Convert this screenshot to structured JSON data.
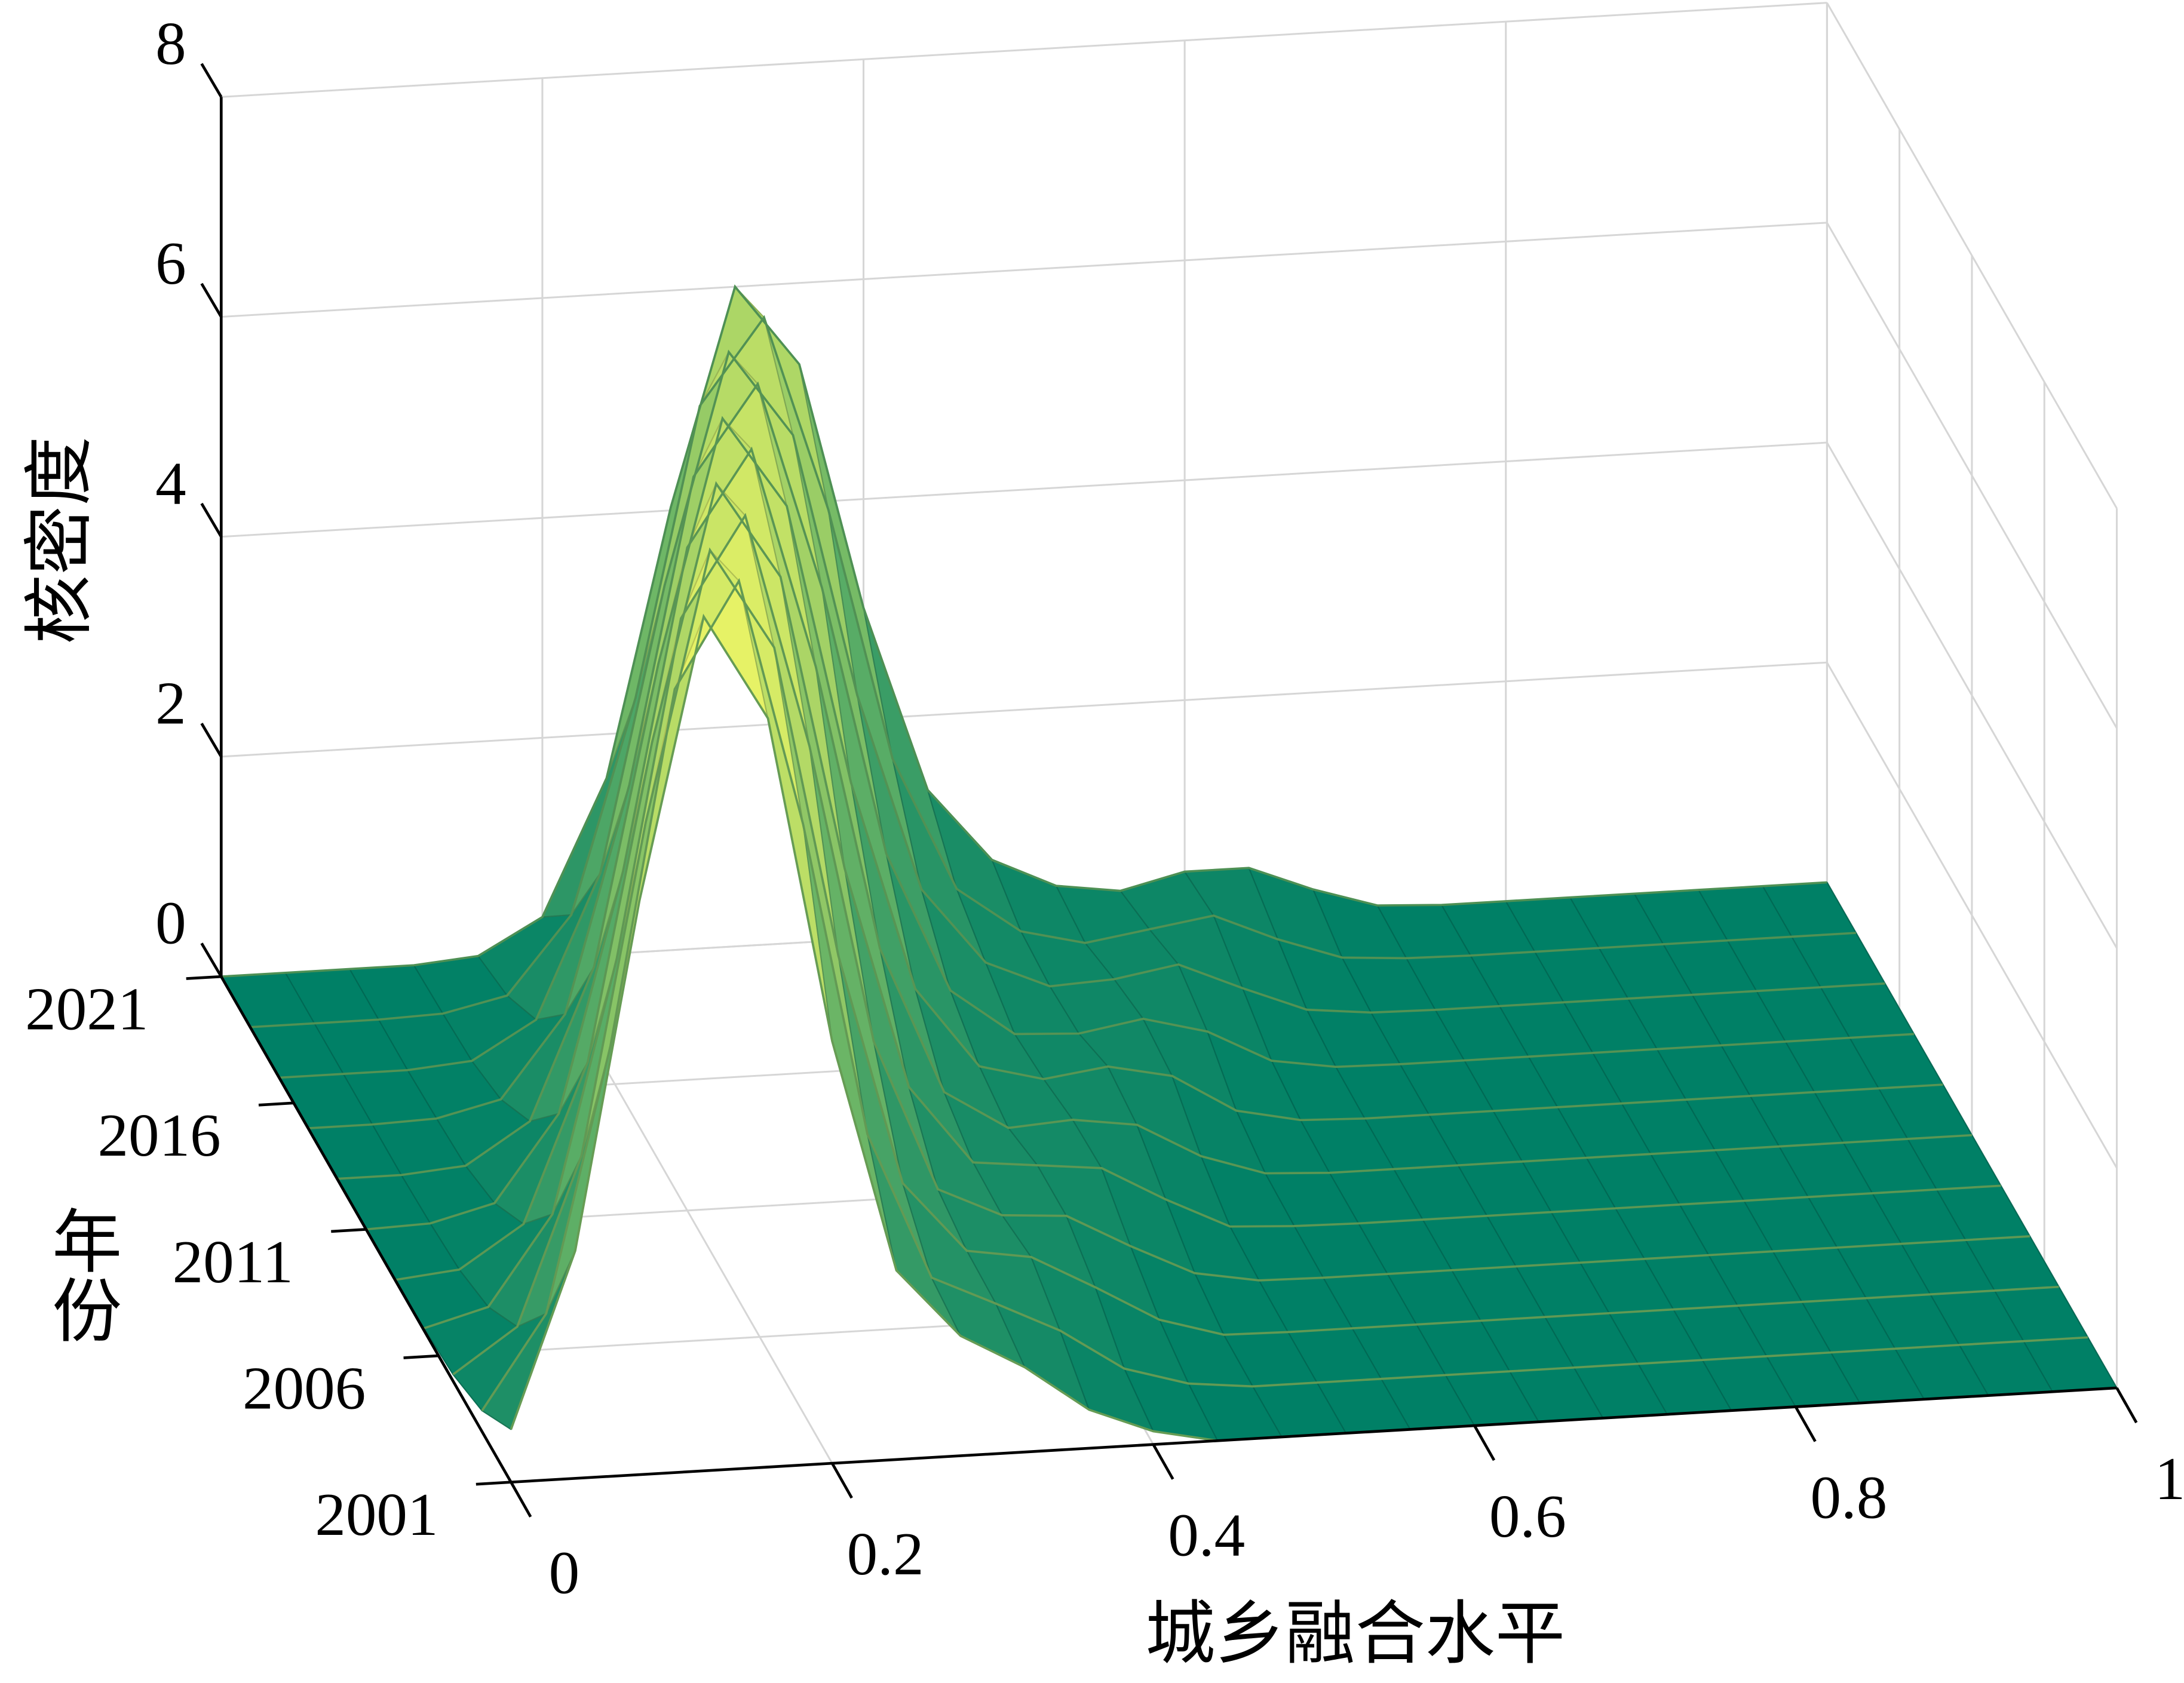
{
  "chart_data": {
    "type": "surface",
    "xlabel": "城乡融合水平",
    "ylabel": "年份",
    "zlabel": "核密度",
    "x": [
      0,
      0.04,
      0.08,
      0.12,
      0.16,
      0.2,
      0.24,
      0.28,
      0.32,
      0.36,
      0.4,
      0.44,
      0.48,
      0.52,
      0.56,
      0.6,
      0.64,
      0.68,
      0.72,
      0.76,
      0.8,
      0.84,
      0.88,
      0.92,
      0.96,
      1
    ],
    "years": [
      2001,
      2003,
      2005,
      2007,
      2009,
      2011,
      2013,
      2015,
      2017,
      2019,
      2021
    ],
    "z": [
      [
        0.48,
        2.07,
        5.22,
        7.77,
        6.81,
        3.84,
        1.72,
        1.09,
        0.77,
        0.35,
        0.12,
        0,
        0,
        0,
        0,
        0,
        0,
        0,
        0,
        0,
        0,
        0,
        0,
        0,
        0,
        0
      ],
      [
        0.19,
        1.04,
        3.44,
        6.65,
        7.6,
        5.35,
        2.5,
        1.16,
        0.89,
        0.61,
        0.23,
        0.06,
        0,
        0,
        0,
        0,
        0,
        0,
        0,
        0,
        0,
        0,
        0,
        0,
        0,
        0
      ],
      [
        0.06,
        0.46,
        1.98,
        4.98,
        7.42,
        6.5,
        3.66,
        1.56,
        0.91,
        0.82,
        0.51,
        0.18,
        0.01,
        0,
        0,
        0,
        0,
        0,
        0,
        0,
        0,
        0,
        0,
        0,
        0,
        0
      ],
      [
        0.02,
        0.18,
        0.99,
        3.28,
        6.34,
        7.24,
        5.11,
        2.39,
        1.01,
        0.74,
        0.7,
        0.39,
        0.11,
        0.01,
        0,
        0,
        0,
        0,
        0,
        0,
        0,
        0,
        0,
        0,
        0,
        0
      ],
      [
        0,
        0.06,
        0.44,
        1.88,
        4.75,
        7.07,
        6.19,
        3.5,
        1.48,
        0.76,
        0.7,
        0.64,
        0.32,
        0.04,
        0.01,
        0,
        0,
        0,
        0,
        0,
        0,
        0,
        0,
        0,
        0,
        0
      ],
      [
        0,
        0.02,
        0.17,
        0.95,
        3.12,
        6.03,
        6.89,
        4.88,
        2.28,
        0.94,
        0.58,
        0.62,
        0.54,
        0.22,
        0.03,
        0,
        0,
        0,
        0,
        0,
        0,
        0,
        0,
        0,
        0,
        0
      ],
      [
        0,
        0,
        0.05,
        0.42,
        1.79,
        4.51,
        6.71,
        5.88,
        3.33,
        1.42,
        0.68,
        0.53,
        0.61,
        0.49,
        0.14,
        0.02,
        0,
        0,
        0,
        0,
        0,
        0,
        0,
        0,
        0,
        0
      ],
      [
        0,
        0,
        0.02,
        0.16,
        0.9,
        2.95,
        5.72,
        6.53,
        4.64,
        2.19,
        0.91,
        0.48,
        0.45,
        0.55,
        0.4,
        0.1,
        0.01,
        0,
        0,
        0,
        0,
        0,
        0,
        0,
        0,
        0
      ],
      [
        0,
        0,
        0,
        0.05,
        0.39,
        1.69,
        4.27,
        6.36,
        5.57,
        3.17,
        1.37,
        0.67,
        0.42,
        0.45,
        0.55,
        0.3,
        0.07,
        0.01,
        0,
        0,
        0,
        0,
        0,
        0,
        0,
        0
      ],
      [
        0,
        0,
        0,
        0.02,
        0.15,
        0.85,
        2.79,
        5.41,
        6.18,
        4.4,
        2.1,
        0.88,
        0.46,
        0.32,
        0.41,
        0.5,
        0.25,
        0.05,
        0.01,
        0,
        0,
        0,
        0,
        0,
        0,
        0
      ],
      [
        0,
        0,
        0,
        0,
        0.05,
        0.37,
        1.6,
        4.03,
        6.0,
        5.26,
        3.01,
        1.32,
        0.65,
        0.38,
        0.3,
        0.44,
        0.44,
        0.21,
        0.03,
        0,
        0,
        0,
        0,
        0,
        0,
        0
      ]
    ],
    "xlim": [
      0,
      1
    ],
    "xticks": [
      0,
      0.2,
      0.4,
      0.6,
      0.8,
      1
    ],
    "ylim": [
      2001,
      2021
    ],
    "yticks": [
      2001,
      2006,
      2011,
      2016,
      2021
    ],
    "zlim": [
      0,
      8
    ],
    "zticks": [
      0,
      2,
      4,
      6,
      8
    ],
    "grid": true,
    "colormap": [
      "#008066",
      "#ffff66"
    ]
  }
}
